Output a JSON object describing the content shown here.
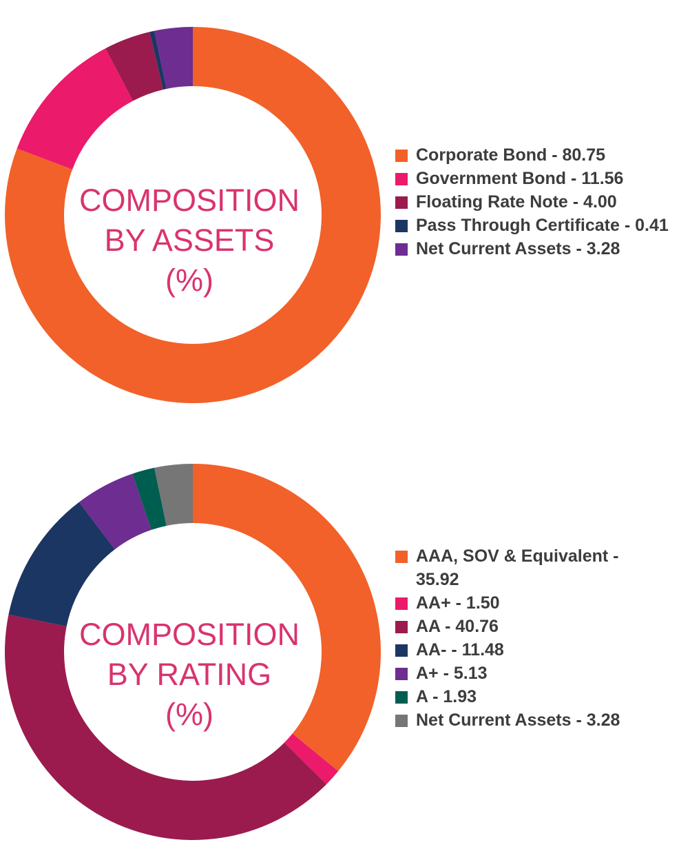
{
  "chart_data": [
    {
      "type": "pie",
      "center_title": [
        "COMPOSITION",
        "BY ASSETS",
        "(%)"
      ],
      "legend_position": "right",
      "series": [
        {
          "label": "Corporate Bond - 80.75",
          "name": "Corporate Bond",
          "value": 80.75,
          "color": "#f26129"
        },
        {
          "label": "Government Bond - 11.56",
          "name": "Government Bond",
          "value": 11.56,
          "color": "#ec1a6b"
        },
        {
          "label": "Floating Rate Note - 4.00",
          "name": "Floating Rate Note",
          "value": 4.0,
          "color": "#9b1b4e"
        },
        {
          "label": "Pass Through Certificate - 0.41",
          "name": "Pass Through Certificate",
          "value": 0.41,
          "color": "#1c3663"
        },
        {
          "label": "Net Current Assets - 3.28",
          "name": "Net Current Assets",
          "value": 3.28,
          "color": "#6e2d91"
        }
      ]
    },
    {
      "type": "pie",
      "center_title": [
        "COMPOSITION",
        "BY RATING",
        "(%)"
      ],
      "legend_position": "right",
      "series": [
        {
          "label": "AAA, SOV & Equivalent - 35.92",
          "name": "AAA, SOV & Equivalent",
          "value": 35.92,
          "color": "#f26129"
        },
        {
          "label": "AA+ - 1.50",
          "name": "AA+",
          "value": 1.5,
          "color": "#ec1a6b"
        },
        {
          "label": "AA - 40.76",
          "name": "AA",
          "value": 40.76,
          "color": "#9b1b4e"
        },
        {
          "label": "AA- - 11.48",
          "name": "AA-",
          "value": 11.48,
          "color": "#1c3663"
        },
        {
          "label": "A+ - 5.13",
          "name": "A+",
          "value": 5.13,
          "color": "#6e2d91"
        },
        {
          "label": "A - 1.93",
          "name": "A",
          "value": 1.93,
          "color": "#005e50"
        },
        {
          "label": "Net Current Assets - 3.28",
          "name": "Net Current Assets",
          "value": 3.28,
          "color": "#767676"
        }
      ]
    }
  ]
}
